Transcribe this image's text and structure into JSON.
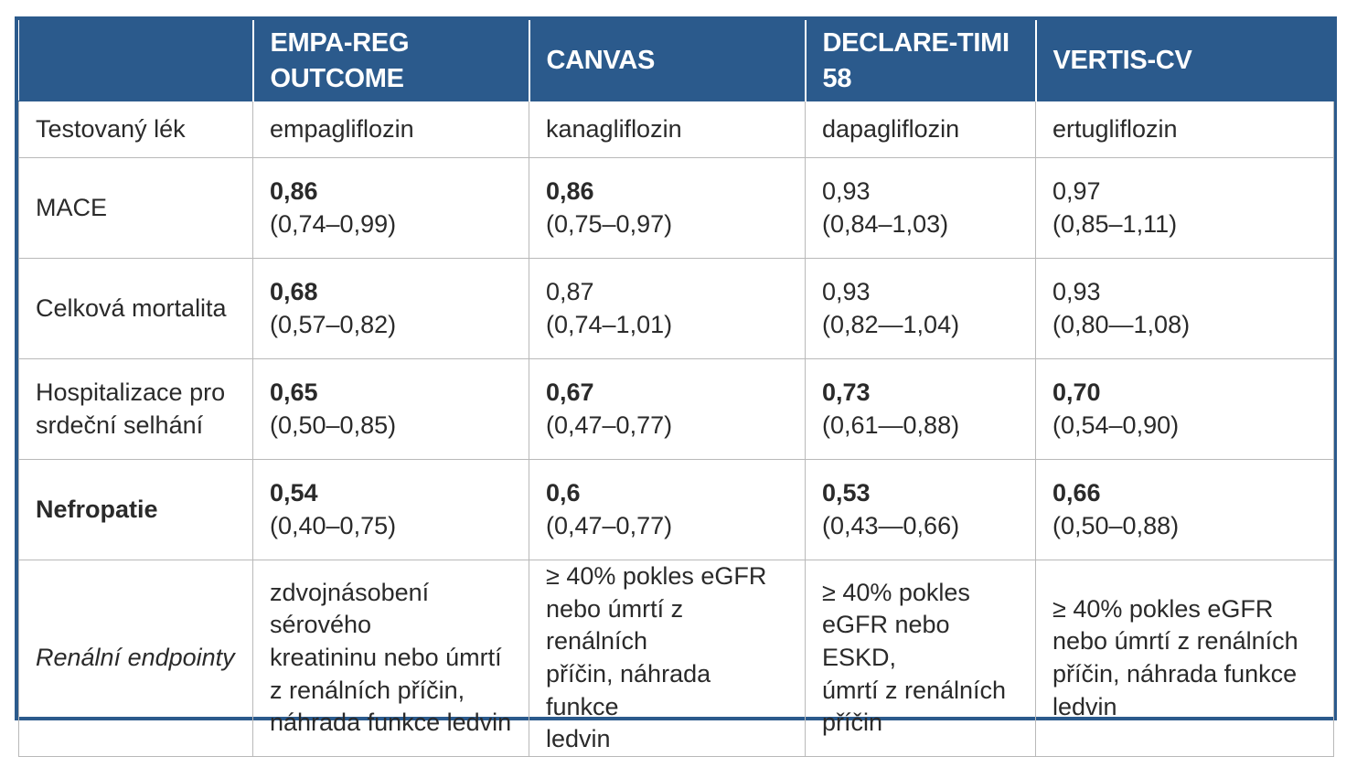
{
  "columns": [
    "",
    "EMPA-REG OUTCOME",
    "CANVAS",
    "DECLARE-TIMI 58",
    "VERTIS-CV"
  ],
  "drug_row": {
    "label": "Testovaný lék",
    "cells": [
      "empagliflozin",
      "kanagliflozin",
      "dapagliflozin",
      "ertugliflozin"
    ]
  },
  "value_rows": [
    {
      "label": "MACE",
      "label_style": "normal",
      "cells": [
        {
          "value": "0,86",
          "ci": "(0,74–0,99)",
          "bold": true
        },
        {
          "value": "0,86",
          "ci": "(0,75–0,97)",
          "bold": true
        },
        {
          "value": "0,93",
          "ci": "(0,84–1,03)",
          "bold": false
        },
        {
          "value": "0,97",
          "ci": "(0,85–1,11)",
          "bold": false
        }
      ]
    },
    {
      "label": "Celková mortalita",
      "label_style": "normal",
      "cells": [
        {
          "value": "0,68",
          "ci": "(0,57–0,82)",
          "bold": true
        },
        {
          "value": "0,87",
          "ci": "(0,74–1,01)",
          "bold": false
        },
        {
          "value": "0,93",
          "ci": "(0,82—1,04)",
          "bold": false
        },
        {
          "value": "0,93",
          "ci": "(0,80—1,08)",
          "bold": false
        }
      ]
    },
    {
      "label_lines": [
        "Hospitalizace pro",
        "srdeční selhání"
      ],
      "label_style": "normal",
      "cells": [
        {
          "value": "0,65",
          "ci": "(0,50–0,85)",
          "bold": true
        },
        {
          "value": "0,67",
          "ci": "(0,47–0,77)",
          "bold": true
        },
        {
          "value": "0,73",
          "ci": "(0,61—0,88)",
          "bold": true
        },
        {
          "value": "0,70",
          "ci": "(0,54–0,90)",
          "bold": true
        }
      ]
    },
    {
      "label": "Nefropatie",
      "label_style": "bold",
      "cells": [
        {
          "value": "0,54",
          "ci": "(0,40–0,75)",
          "bold": true
        },
        {
          "value": "0,6",
          "ci": "(0,47–0,77)",
          "bold": true
        },
        {
          "value": "0,53",
          "ci": "(0,43—0,66)",
          "bold": true
        },
        {
          "value": "0,66",
          "ci": "(0,50–0,88)",
          "bold": true
        }
      ]
    }
  ],
  "renal_row": {
    "label": "Renální endpointy",
    "cells": [
      [
        "zdvojnásobení sérového",
        "kreatininu nebo úmrtí",
        "z renálních příčin,",
        "náhrada funkce ledvin"
      ],
      [
        "≥ 40% pokles eGFR",
        "nebo úmrtí z renálních",
        "příčin, náhrada funkce",
        "ledvin"
      ],
      [
        "≥ 40% pokles",
        "eGFR nebo ESKD,",
        "úmrtí z renálních",
        "příčin"
      ],
      [
        "≥ 40% pokles eGFR",
        "nebo úmrtí z renálních",
        "příčin, náhrada funkce",
        "ledvin"
      ]
    ]
  },
  "colors": {
    "header_bg": "#2b5a8c",
    "header_text": "#ffffff",
    "grid": "#b9b9b9",
    "text": "#2a2a2a"
  }
}
